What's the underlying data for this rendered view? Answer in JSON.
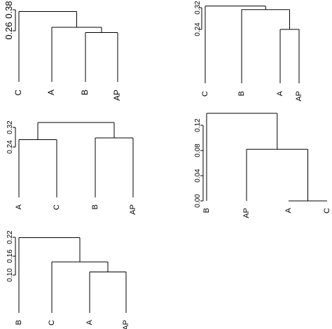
{
  "chart_data": [
    {
      "type": "dendrogram",
      "ticks": [
        "0.26",
        "0.38"
      ],
      "leaves": [
        "C",
        "A",
        "B",
        "AP"
      ],
      "merges": [
        {
          "left": "B",
          "right": "AP",
          "height": 0.25
        },
        {
          "left": "A",
          "right": "B+AP",
          "height": 0.28
        },
        {
          "left": "C",
          "right": "A+B+AP",
          "height": 0.37
        }
      ]
    },
    {
      "type": "dendrogram",
      "ticks": [
        "0.24",
        "0.32"
      ],
      "leaves": [
        "C",
        "B",
        "A",
        "AP"
      ],
      "merges": [
        {
          "left": "A",
          "right": "AP",
          "height": 0.24
        },
        {
          "left": "B",
          "right": "A+AP",
          "height": 0.313
        },
        {
          "left": "C",
          "right": "B+A+AP",
          "height": 0.326
        }
      ]
    },
    {
      "type": "dendrogram",
      "ticks": [
        "0.24",
        "0.32"
      ],
      "leaves": [
        "A",
        "C",
        "B",
        "AP"
      ],
      "merges": [
        {
          "left": "A",
          "right": "C",
          "height": 0.27
        },
        {
          "left": "B",
          "right": "AP",
          "height": 0.277
        },
        {
          "left": "A+C",
          "right": "B+AP",
          "height": 0.34
        }
      ]
    },
    {
      "type": "dendrogram",
      "ticks": [
        "0.00",
        "0.04",
        "0.08",
        "0.12"
      ],
      "leaves": [
        "B",
        "AP",
        "A",
        "C"
      ],
      "merges": [
        {
          "left": "A",
          "right": "C",
          "height": 0.0
        },
        {
          "left": "AP",
          "right": "A+C",
          "height": 0.082
        },
        {
          "left": "B",
          "right": "AP+A+C",
          "height": 0.139
        }
      ]
    },
    {
      "type": "dendrogram",
      "ticks": [
        "0.10",
        "0.16",
        "0.22"
      ],
      "leaves": [
        "B",
        "C",
        "A",
        "AP"
      ],
      "merges": [
        {
          "left": "A",
          "right": "AP",
          "height": 0.11
        },
        {
          "left": "C",
          "right": "A+AP",
          "height": 0.142
        },
        {
          "left": "B",
          "right": "C+A+AP",
          "height": 0.219
        }
      ]
    }
  ]
}
